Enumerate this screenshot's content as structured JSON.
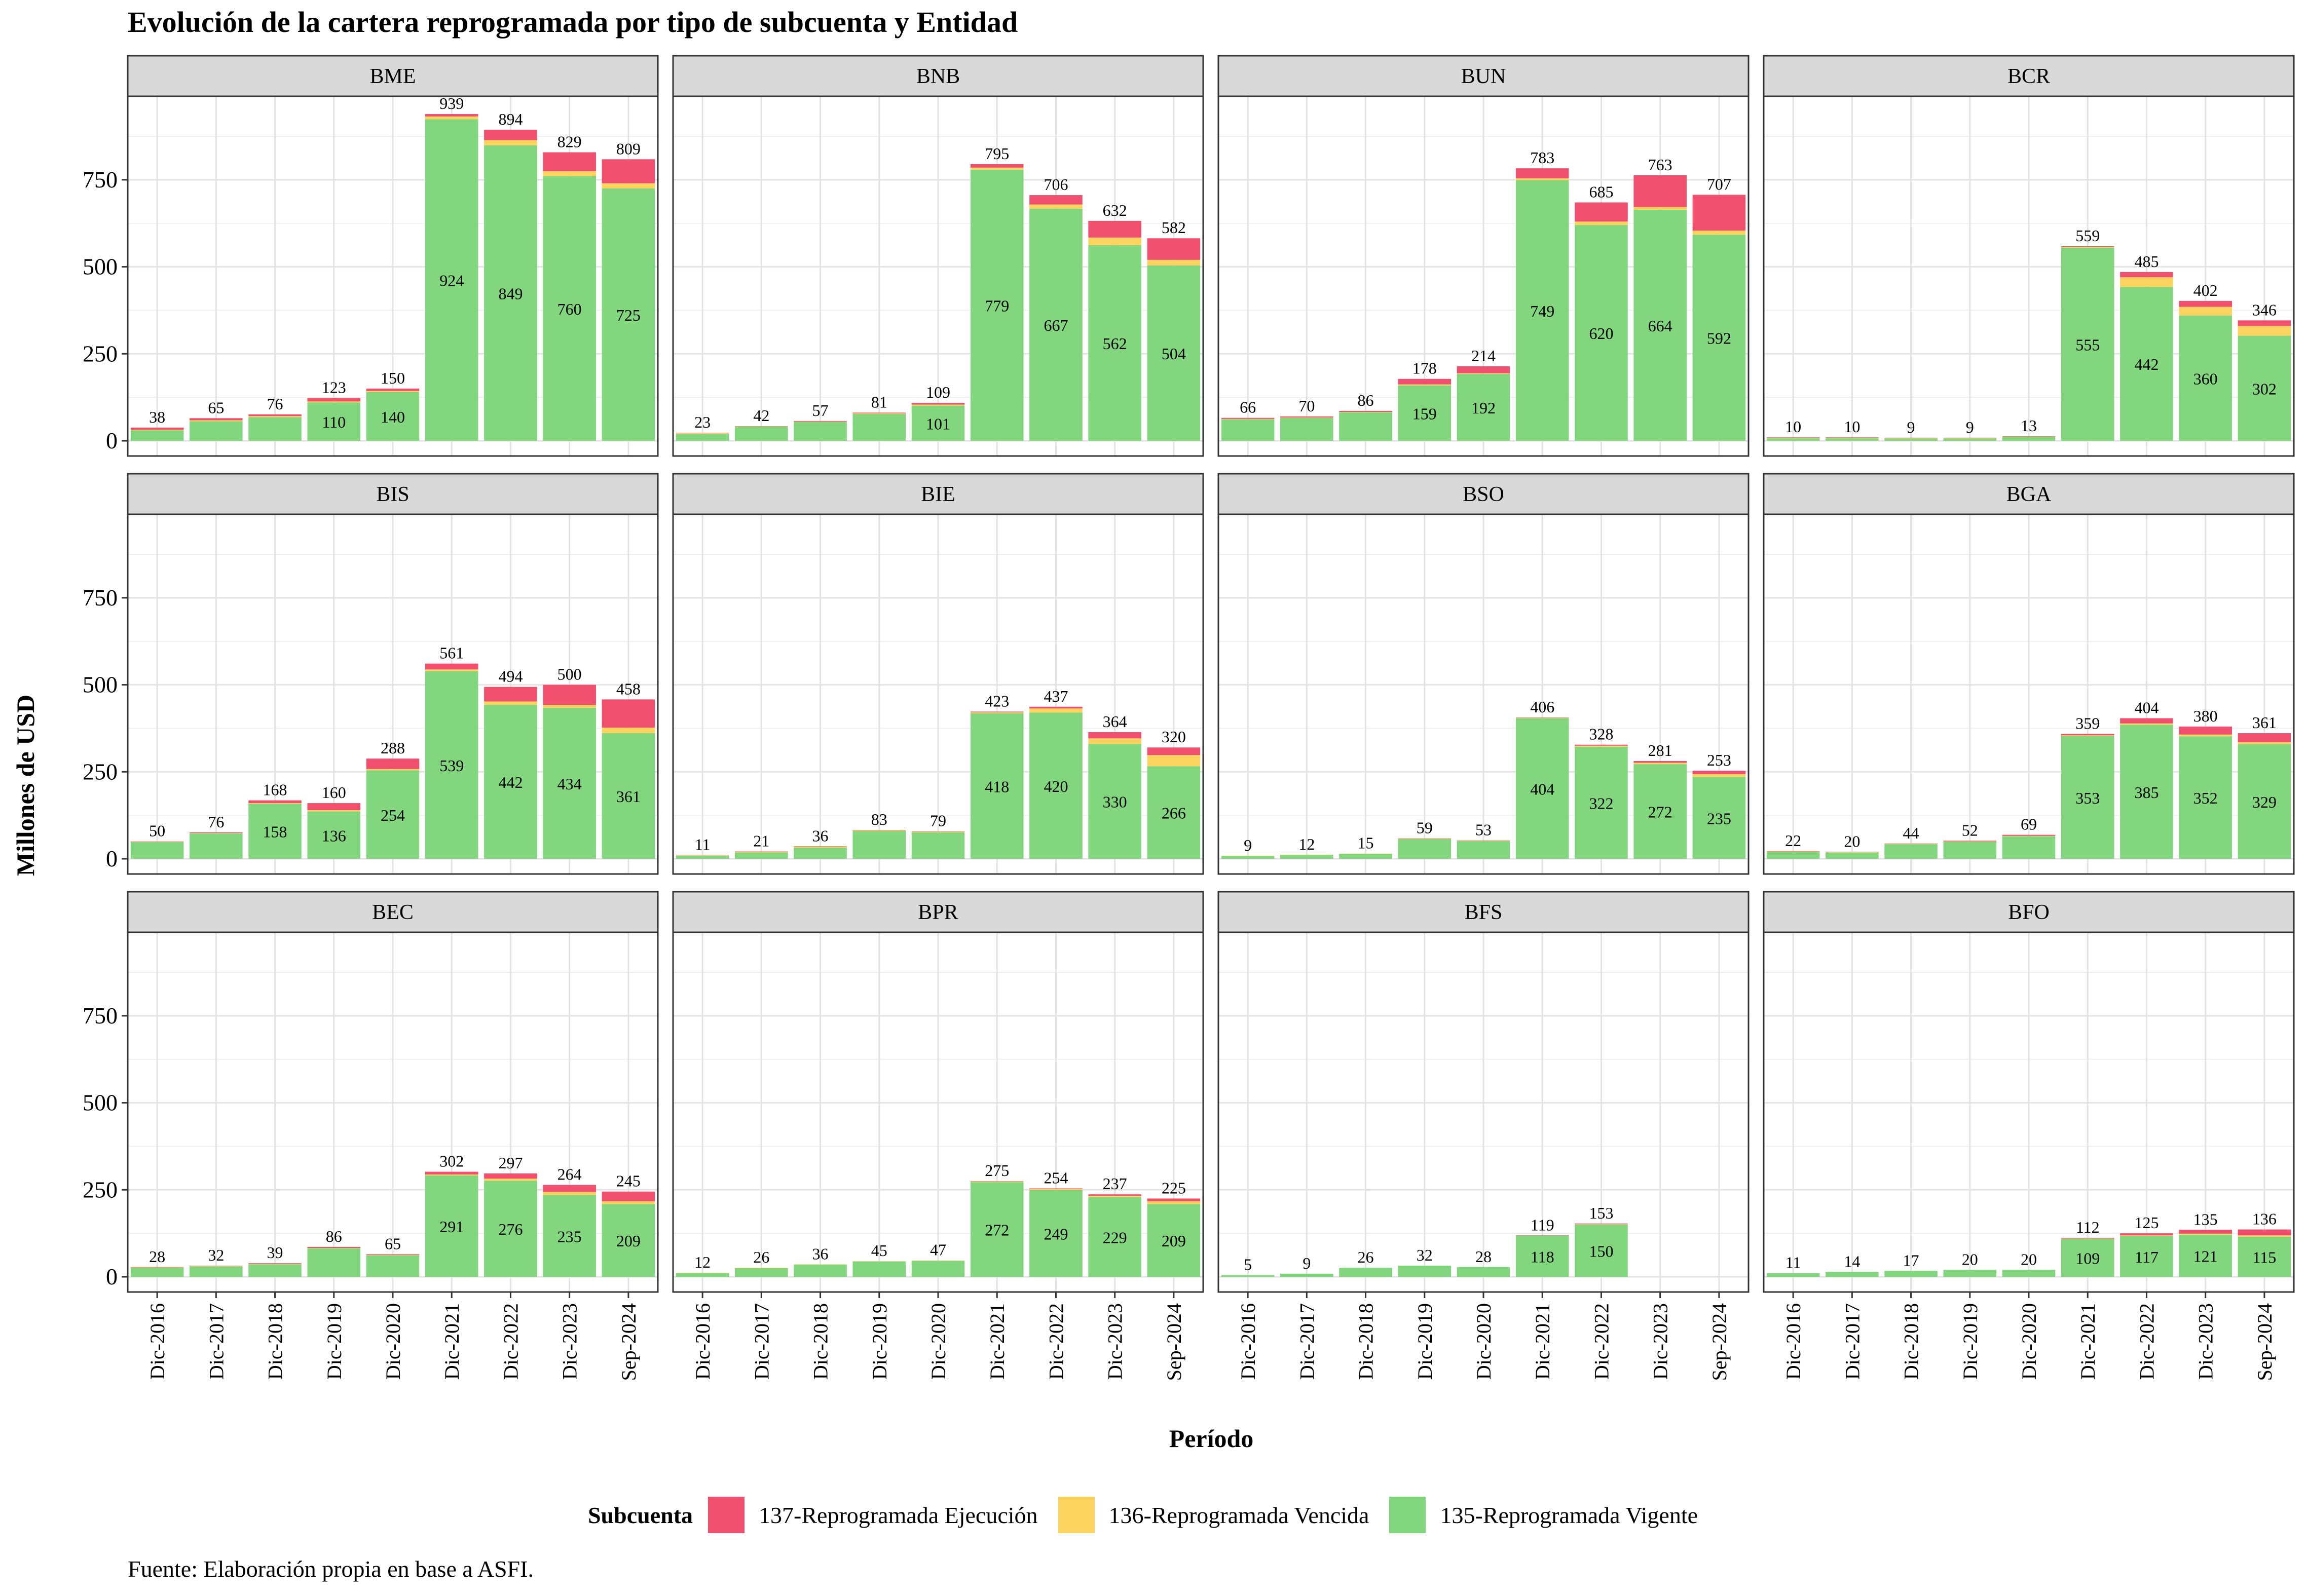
{
  "title": "Evolución de la cartera reprogramada por tipo de subcuenta y Entidad",
  "ylabel": "Millones de USD",
  "xlabel": "Período",
  "caption": "Fuente: Elaboración propia en base a ASFI.",
  "legend": {
    "title": "Subcuenta",
    "items": [
      {
        "label": "137-Reprogramada Ejecución",
        "color": "#F0506E"
      },
      {
        "label": "136-Reprogramada Vencida",
        "color": "#FDD35F"
      },
      {
        "label": "135-Reprogramada Vigente",
        "color": "#82D67E"
      }
    ]
  },
  "chart_data": {
    "type": "bar",
    "stacked": true,
    "facets_layout": "3x4",
    "categories": [
      "Dic-2016",
      "Dic-2017",
      "Dic-2018",
      "Dic-2019",
      "Dic-2020",
      "Dic-2021",
      "Dic-2022",
      "Dic-2023",
      "Sep-2024"
    ],
    "y_ticks": [
      0,
      250,
      500,
      750
    ],
    "ylim": [
      0,
      990
    ],
    "grid": true,
    "legend_position": "bottom",
    "series_names": [
      "135-Reprogramada Vigente",
      "136-Reprogramada Vencida",
      "137-Reprogramada Ejecución"
    ],
    "series_colors": [
      "#82D67E",
      "#FDD35F",
      "#F0506E"
    ],
    "panels": [
      {
        "name": "BME",
        "vigente": [
          30,
          56,
          68,
          110,
          140,
          924,
          849,
          760,
          725
        ],
        "vencida": [
          2,
          3,
          3,
          3,
          3,
          8,
          15,
          15,
          15
        ],
        "ejecucion": [
          6,
          6,
          5,
          10,
          7,
          7,
          30,
          54,
          69
        ],
        "totals": [
          38,
          65,
          76,
          123,
          150,
          939,
          894,
          829,
          809
        ],
        "shown_vigente": [
          null,
          null,
          null,
          110,
          140,
          924,
          849,
          760,
          725
        ]
      },
      {
        "name": "BNB",
        "vigente": [
          20,
          40,
          54,
          77,
          101,
          779,
          667,
          562,
          504
        ],
        "vencida": [
          2,
          1,
          1,
          2,
          3,
          6,
          12,
          22,
          16
        ],
        "ejecucion": [
          1,
          1,
          2,
          2,
          5,
          10,
          27,
          48,
          62
        ],
        "totals": [
          23,
          42,
          57,
          81,
          109,
          795,
          706,
          632,
          582
        ],
        "shown_vigente": [
          null,
          null,
          null,
          null,
          101,
          779,
          667,
          562,
          504
        ]
      },
      {
        "name": "BUN",
        "vigente": [
          62,
          66,
          82,
          159,
          192,
          749,
          620,
          664,
          592
        ],
        "vencida": [
          1,
          1,
          1,
          3,
          2,
          5,
          10,
          8,
          12
        ],
        "ejecucion": [
          3,
          3,
          3,
          16,
          20,
          29,
          55,
          91,
          103
        ],
        "totals": [
          66,
          70,
          86,
          178,
          214,
          783,
          685,
          763,
          707
        ],
        "shown_vigente": [
          null,
          null,
          null,
          159,
          192,
          749,
          620,
          664,
          592
        ]
      },
      {
        "name": "BCR",
        "vigente": [
          7,
          7,
          7,
          7,
          11,
          555,
          442,
          360,
          302
        ],
        "vencida": [
          2,
          2,
          1,
          1,
          1,
          2,
          28,
          25,
          28
        ],
        "ejecucion": [
          1,
          1,
          1,
          1,
          1,
          2,
          15,
          17,
          16
        ],
        "totals": [
          10,
          10,
          9,
          9,
          13,
          559,
          485,
          402,
          346
        ],
        "shown_vigente": [
          null,
          null,
          null,
          null,
          null,
          555,
          442,
          360,
          302
        ]
      },
      {
        "name": "BIS",
        "vigente": [
          48,
          73,
          158,
          136,
          254,
          539,
          442,
          434,
          361
        ],
        "vencida": [
          1,
          1,
          2,
          4,
          4,
          5,
          10,
          8,
          16
        ],
        "ejecucion": [
          1,
          2,
          8,
          20,
          30,
          17,
          42,
          58,
          81
        ],
        "totals": [
          50,
          76,
          168,
          160,
          288,
          561,
          494,
          500,
          458
        ],
        "shown_vigente": [
          null,
          null,
          158,
          136,
          254,
          539,
          442,
          434,
          361
        ]
      },
      {
        "name": "BIE",
        "vigente": [
          9,
          18,
          32,
          80,
          76,
          418,
          420,
          330,
          266
        ],
        "vencida": [
          1,
          2,
          3,
          2,
          2,
          3,
          12,
          16,
          32
        ],
        "ejecucion": [
          1,
          1,
          1,
          1,
          1,
          2,
          5,
          18,
          22
        ],
        "totals": [
          11,
          21,
          36,
          83,
          79,
          423,
          437,
          364,
          320
        ],
        "shown_vigente": [
          null,
          null,
          null,
          null,
          null,
          418,
          420,
          330,
          266
        ]
      },
      {
        "name": "BSO",
        "vigente": [
          8,
          11,
          14,
          57,
          51,
          404,
          322,
          272,
          235
        ],
        "vencida": [
          1,
          1,
          1,
          1,
          1,
          1,
          3,
          4,
          8
        ],
        "ejecucion": [
          0,
          0,
          0,
          1,
          1,
          1,
          3,
          5,
          10
        ],
        "totals": [
          9,
          12,
          15,
          59,
          53,
          406,
          328,
          281,
          253
        ],
        "shown_vigente": [
          null,
          null,
          null,
          null,
          null,
          404,
          322,
          272,
          235
        ]
      },
      {
        "name": "BGA",
        "vigente": [
          20,
          18,
          42,
          49,
          65,
          353,
          385,
          352,
          329
        ],
        "vencida": [
          1,
          1,
          1,
          1,
          1,
          2,
          4,
          5,
          6
        ],
        "ejecucion": [
          1,
          1,
          1,
          2,
          3,
          4,
          15,
          23,
          26
        ],
        "totals": [
          22,
          20,
          44,
          52,
          69,
          359,
          404,
          380,
          361
        ],
        "shown_vigente": [
          null,
          null,
          null,
          null,
          null,
          353,
          385,
          352,
          329
        ]
      },
      {
        "name": "BEC",
        "vigente": [
          26,
          30,
          36,
          82,
          62,
          291,
          276,
          235,
          209
        ],
        "vencida": [
          1,
          1,
          1,
          1,
          1,
          3,
          6,
          9,
          8
        ],
        "ejecucion": [
          1,
          1,
          2,
          3,
          2,
          8,
          15,
          20,
          28
        ],
        "totals": [
          28,
          32,
          39,
          86,
          65,
          302,
          297,
          264,
          245
        ],
        "shown_vigente": [
          null,
          null,
          null,
          null,
          null,
          291,
          276,
          235,
          209
        ]
      },
      {
        "name": "BPR",
        "vigente": [
          11,
          25,
          35,
          44,
          46,
          272,
          249,
          229,
          209
        ],
        "vencida": [
          1,
          1,
          1,
          1,
          1,
          2,
          3,
          4,
          8
        ],
        "ejecucion": [
          0,
          0,
          0,
          0,
          0,
          1,
          2,
          4,
          8
        ],
        "totals": [
          12,
          26,
          36,
          45,
          47,
          275,
          254,
          237,
          225
        ],
        "shown_vigente": [
          null,
          null,
          null,
          null,
          null,
          272,
          249,
          229,
          209
        ]
      },
      {
        "name": "BFS",
        "vigente": [
          5,
          9,
          26,
          32,
          28,
          118,
          150,
          null,
          null
        ],
        "vencida": [
          0,
          0,
          0,
          0,
          0,
          0,
          1,
          null,
          null
        ],
        "ejecucion": [
          0,
          0,
          0,
          0,
          0,
          1,
          2,
          null,
          null
        ],
        "totals": [
          5,
          9,
          26,
          32,
          28,
          119,
          153,
          null,
          null
        ],
        "shown_vigente": [
          null,
          null,
          null,
          null,
          null,
          118,
          150,
          null,
          null
        ]
      },
      {
        "name": "BFO",
        "vigente": [
          11,
          14,
          17,
          20,
          20,
          109,
          117,
          121,
          115
        ],
        "vencida": [
          0,
          0,
          0,
          0,
          0,
          1,
          2,
          3,
          4
        ],
        "ejecucion": [
          0,
          0,
          0,
          0,
          0,
          2,
          6,
          11,
          17
        ],
        "totals": [
          11,
          14,
          17,
          20,
          20,
          112,
          125,
          135,
          136
        ],
        "shown_vigente": [
          null,
          null,
          null,
          null,
          null,
          109,
          117,
          121,
          115
        ]
      }
    ]
  }
}
